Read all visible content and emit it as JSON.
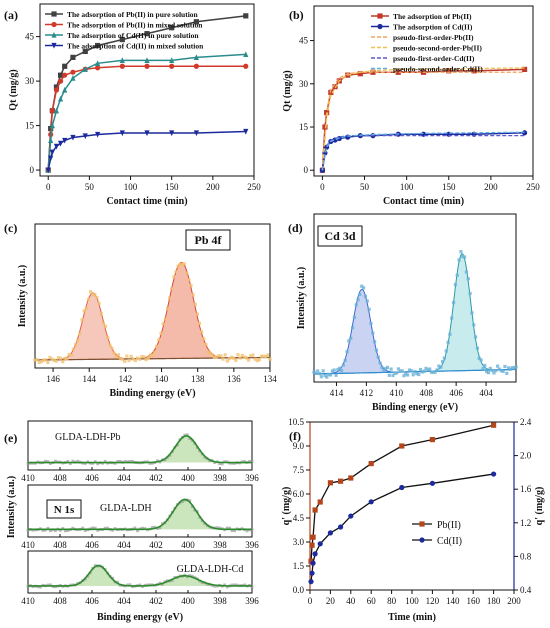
{
  "chart_data": [
    {
      "id": "a",
      "panel_label": "(a)",
      "type": "line",
      "xlabel": "Contact time (min)",
      "ylabel": "Qt (mg/g)",
      "xlim": [
        -10,
        250
      ],
      "ylim": [
        -2,
        56
      ],
      "xticks": [
        0,
        50,
        100,
        150,
        200,
        250
      ],
      "yticks": [
        0,
        15,
        30,
        45
      ],
      "legend_position": "top-left",
      "series": [
        {
          "name": "The adsorption of Pb(II) in pure solution",
          "color": "#404040",
          "marker": "square",
          "x": [
            0,
            3,
            5,
            10,
            15,
            20,
            30,
            45,
            60,
            90,
            120,
            150,
            180,
            240
          ],
          "y": [
            0,
            14,
            20,
            28,
            32,
            35,
            38,
            40,
            42,
            44,
            46,
            48,
            50,
            52
          ]
        },
        {
          "name": "The adsorption of Pb(II) in mixed solution",
          "color": "#d03a2a",
          "marker": "circle",
          "x": [
            0,
            3,
            5,
            10,
            15,
            20,
            30,
            45,
            60,
            90,
            120,
            150,
            180,
            240
          ],
          "y": [
            0,
            12,
            20,
            27,
            30,
            32,
            33,
            34,
            34.5,
            35,
            35,
            35,
            35,
            35
          ]
        },
        {
          "name": "The adsorption of Cd(II) in pure solution",
          "color": "#2a8c8c",
          "marker": "triangle",
          "x": [
            0,
            3,
            5,
            10,
            15,
            20,
            30,
            45,
            60,
            90,
            120,
            150,
            180,
            240
          ],
          "y": [
            0,
            10,
            15,
            20,
            24,
            27,
            31,
            34,
            36,
            37,
            37,
            37,
            38,
            39
          ]
        },
        {
          "name": "The adsorption of Cd(II) in mixed solution",
          "color": "#1c2a9c",
          "marker": "triangle-down",
          "x": [
            0,
            3,
            5,
            10,
            15,
            20,
            30,
            45,
            60,
            90,
            120,
            150,
            180,
            240
          ],
          "y": [
            0,
            4,
            6,
            8,
            9,
            10,
            11,
            11.5,
            12,
            12.5,
            12.5,
            12.5,
            12.5,
            13
          ]
        }
      ]
    },
    {
      "id": "b",
      "panel_label": "(b)",
      "type": "line",
      "xlabel": "Contact time (min)",
      "ylabel": "Qt (mg/g)",
      "xlim": [
        -10,
        250
      ],
      "ylim": [
        -2,
        57
      ],
      "xticks": [
        0,
        50,
        100,
        150,
        200,
        250
      ],
      "yticks": [
        0,
        15,
        30,
        45
      ],
      "legend_position": "top-right",
      "series": [
        {
          "name": "The adsorption of Pb(II)",
          "color": "#c0392b",
          "marker": "square",
          "x": [
            0,
            3,
            5,
            10,
            15,
            20,
            30,
            45,
            60,
            90,
            120,
            150,
            180,
            240
          ],
          "y": [
            0,
            15,
            20,
            27,
            29,
            31,
            33,
            33.5,
            34,
            34,
            34,
            34.5,
            34.5,
            35
          ]
        },
        {
          "name": "The adsorption of Cd(II)",
          "color": "#1c2aa0",
          "marker": "circle",
          "x": [
            0,
            3,
            5,
            10,
            15,
            20,
            30,
            45,
            60,
            90,
            120,
            150,
            180,
            240
          ],
          "y": [
            0,
            6,
            8,
            10,
            10.5,
            11,
            11.5,
            12,
            12,
            12.5,
            12.5,
            12.5,
            12.5,
            13
          ]
        },
        {
          "name": "pseudo-first-order-Pb(II)",
          "color": "#f4a460",
          "dash": "4,2",
          "fit": true,
          "x": [
            0,
            5,
            10,
            20,
            30,
            45,
            60,
            90,
            120,
            180,
            240
          ],
          "y": [
            0,
            20,
            28,
            32,
            33.5,
            34,
            34,
            34,
            34,
            34,
            34
          ]
        },
        {
          "name": "pseudo-second-order-Pb(II)",
          "color": "#f0c050",
          "dash": "4,2",
          "fit": true,
          "x": [
            0,
            5,
            10,
            20,
            30,
            45,
            60,
            90,
            120,
            180,
            240
          ],
          "y": [
            0,
            18,
            26,
            31,
            33,
            34,
            34.5,
            35,
            35,
            35.3,
            35.5
          ]
        },
        {
          "name": "pseudo-first-order-Cd(II)",
          "color": "#5a5ad0",
          "dash": "4,2",
          "fit": true,
          "x": [
            0,
            5,
            10,
            20,
            30,
            45,
            60,
            90,
            120,
            180,
            240
          ],
          "y": [
            0,
            8.5,
            10.5,
            11.5,
            12,
            12,
            12,
            12,
            12,
            12,
            12
          ]
        },
        {
          "name": "pseudo-second-order-Cd(II)",
          "color": "#60b0e0",
          "dash": "4,2",
          "fit": true,
          "x": [
            0,
            5,
            10,
            20,
            30,
            45,
            60,
            90,
            120,
            180,
            240
          ],
          "y": [
            0,
            8,
            10,
            11.2,
            11.8,
            12.2,
            12.4,
            12.6,
            12.8,
            13,
            13.2
          ]
        }
      ]
    },
    {
      "id": "c",
      "panel_label": "(c)",
      "type": "area",
      "xlabel": "Binding energy (eV)",
      "ylabel": "Intensity (a.u.)",
      "annotation": "Pb 4f",
      "x_reversed": true,
      "xlim": [
        147,
        134
      ],
      "xticks": [
        146,
        144,
        142,
        140,
        138,
        136,
        134
      ],
      "peaks": [
        {
          "center": 143.8,
          "height": 0.52,
          "fwhm": 1.3,
          "fill": "#f3b5a4",
          "line": "#e06040"
        },
        {
          "center": 138.9,
          "height": 0.75,
          "fwhm": 1.6,
          "fill": "#f0a48e",
          "line": "#d84a30"
        }
      ],
      "baseline": {
        "left": 0.0,
        "right": 0.02,
        "color": "#7a5030"
      },
      "raw_color": "#f2c070"
    },
    {
      "id": "d",
      "panel_label": "(d)",
      "type": "area",
      "xlabel": "Binding energy (eV)",
      "ylabel": "Intensity (a.u.)",
      "annotation": "Cd 3d",
      "x_reversed": true,
      "xlim": [
        415.5,
        402
      ],
      "xticks": [
        414,
        412,
        410,
        408,
        406,
        404
      ],
      "peaks": [
        {
          "center": 412.3,
          "height": 0.55,
          "fwhm": 1.4,
          "fill": "#b8c4ec",
          "line": "#3a6ad0"
        },
        {
          "center": 405.6,
          "height": 0.77,
          "fwhm": 1.3,
          "fill": "#b6e4e8",
          "line": "#2a9aa8"
        }
      ],
      "baseline": {
        "left": 0.0,
        "right": 0.03,
        "color": "#2a8cd0"
      },
      "raw_color": "#6ab0d8"
    },
    {
      "id": "e",
      "panel_label": "(e)",
      "type": "area",
      "xlabel": "Binding energy (eV)",
      "ylabel": "Intensity (a.u.)",
      "x_reversed": true,
      "xlim": [
        410,
        396
      ],
      "xticks": [
        410,
        408,
        406,
        404,
        402,
        400,
        398,
        396
      ],
      "subpanels": [
        {
          "label": "GLDA-LDH-Pb",
          "peaks": [
            {
              "center": 400.1,
              "height": 0.65,
              "fwhm": 1.6
            }
          ]
        },
        {
          "label": "GLDA-LDH",
          "box_label": "N 1s",
          "peaks": [
            {
              "center": 400.2,
              "height": 0.68,
              "fwhm": 1.7
            }
          ]
        },
        {
          "label": "GLDA-LDH-Cd",
          "peaks": [
            {
              "center": 405.6,
              "height": 0.6,
              "fwhm": 1.4
            },
            {
              "center": 400.2,
              "height": 0.3,
              "fwhm": 2.0
            }
          ]
        }
      ],
      "fill": "#c2e0b2",
      "line": "#2c8a2c",
      "raw_color": "#9a9a9a"
    },
    {
      "id": "f",
      "panel_label": "(f)",
      "type": "line",
      "xlabel": "Time (min)",
      "ylabel": "q' (mg/g)",
      "ylabel_right": "q' (mg/g)",
      "xlim": [
        0,
        200
      ],
      "ylim": [
        0,
        10.5
      ],
      "ylim_right": [
        0.4,
        2.4
      ],
      "xticks": [
        0,
        20,
        40,
        60,
        80,
        100,
        120,
        140,
        160,
        180,
        200
      ],
      "yticks": [
        0.0,
        1.5,
        3.0,
        4.5,
        6.0,
        7.5,
        9.0,
        10.5
      ],
      "yticks_right": [
        0.4,
        0.8,
        1.2,
        1.6,
        2.0,
        2.4
      ],
      "legend_position": "center-right",
      "series": [
        {
          "name": "Pb(II)",
          "axis": "left",
          "color": "#b5451b",
          "marker": "square",
          "x": [
            1,
            2,
            3,
            5,
            10,
            20,
            30,
            40,
            60,
            90,
            120,
            180
          ],
          "y": [
            1.8,
            2.8,
            3.3,
            5.0,
            5.5,
            6.7,
            6.8,
            7.0,
            7.9,
            9.0,
            9.4,
            10.3
          ]
        },
        {
          "name": "Cd(II)",
          "axis": "right",
          "color": "#1c2a9c",
          "marker": "circle",
          "x": [
            1,
            2,
            3,
            5,
            10,
            20,
            30,
            40,
            60,
            90,
            120,
            180
          ],
          "y": [
            0.5,
            0.6,
            0.72,
            0.83,
            0.95,
            1.08,
            1.15,
            1.28,
            1.45,
            1.62,
            1.67,
            1.78
          ]
        }
      ]
    }
  ]
}
